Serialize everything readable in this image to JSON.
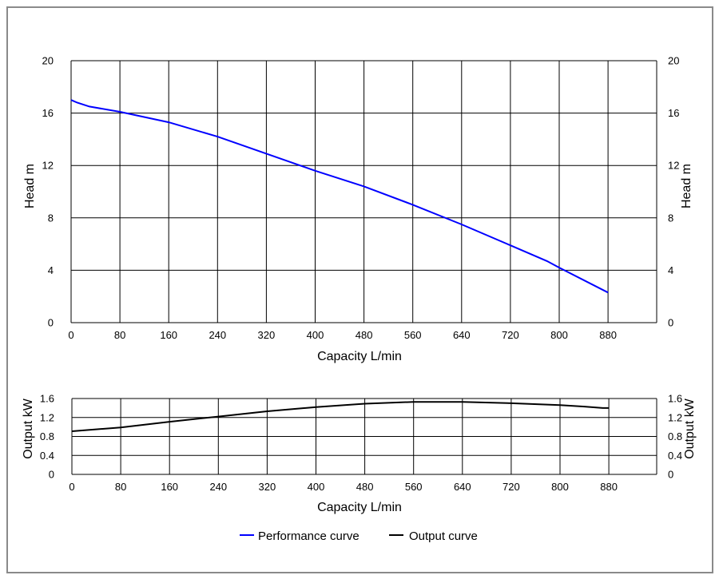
{
  "chart_data": [
    {
      "type": "line",
      "xlabel": "Capacity L/min",
      "ylabel": "Head m",
      "ylabel_right": "Head m",
      "x_ticks": [
        "0",
        "80",
        "160",
        "240",
        "320",
        "400",
        "480",
        "560",
        "640",
        "720",
        "800",
        "880"
      ],
      "y_ticks": [
        "0",
        "4",
        "8",
        "12",
        "16",
        "20"
      ],
      "xlim": [
        0,
        960
      ],
      "ylim": [
        0,
        20
      ],
      "grid": true,
      "series": [
        {
          "name": "Performance curve",
          "color": "#0000ff",
          "x": [
            0,
            10,
            30,
            80,
            160,
            240,
            320,
            400,
            480,
            560,
            640,
            720,
            780,
            800,
            880
          ],
          "y": [
            17.0,
            16.8,
            16.5,
            16.1,
            15.3,
            14.2,
            12.9,
            11.6,
            10.4,
            9.0,
            7.5,
            5.9,
            4.7,
            4.2,
            2.3
          ]
        }
      ]
    },
    {
      "type": "line",
      "xlabel": "Capacity L/min",
      "ylabel": "Output kW",
      "ylabel_right": "Output kW",
      "x_ticks": [
        "0",
        "80",
        "160",
        "240",
        "320",
        "400",
        "480",
        "560",
        "640",
        "720",
        "800",
        "880"
      ],
      "y_ticks": [
        "0",
        "0.4",
        "0.8",
        "1.2",
        "1.6"
      ],
      "xlim": [
        0,
        960
      ],
      "ylim": [
        0,
        1.6
      ],
      "grid": true,
      "series": [
        {
          "name": "Output curve",
          "color": "#000000",
          "x": [
            0,
            80,
            160,
            240,
            320,
            400,
            480,
            560,
            640,
            720,
            800,
            840,
            870,
            880
          ],
          "y": [
            0.91,
            0.99,
            1.11,
            1.22,
            1.33,
            1.42,
            1.49,
            1.53,
            1.53,
            1.5,
            1.46,
            1.43,
            1.4,
            1.4
          ]
        }
      ]
    }
  ],
  "legend": [
    {
      "label": "Performance curve",
      "color": "#0000ff"
    },
    {
      "label": "Output curve",
      "color": "#000000"
    }
  ]
}
